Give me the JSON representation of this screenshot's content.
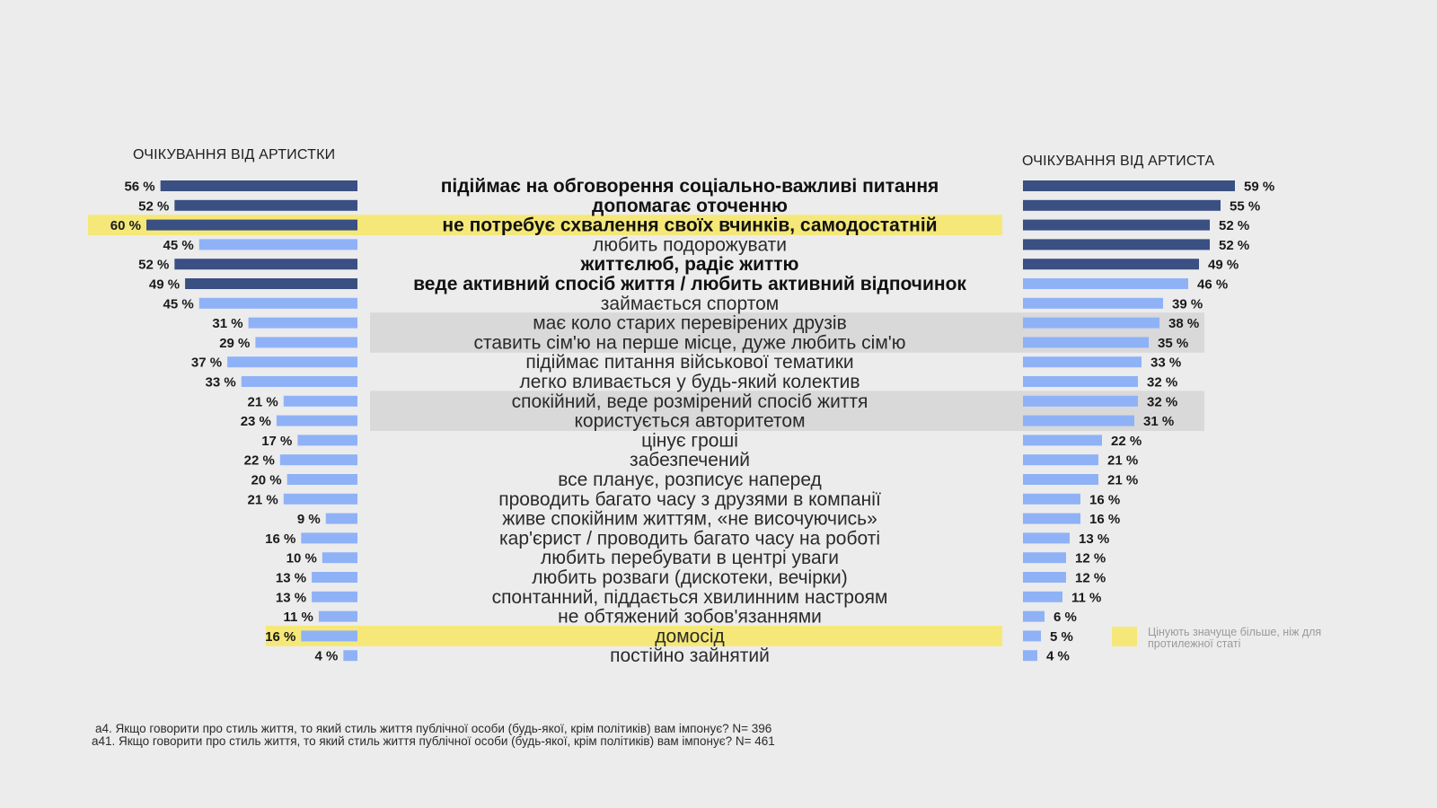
{
  "chart_data": {
    "type": "bar",
    "left_header": "ОЧІКУВАННЯ ВІД АРТИСТКИ",
    "right_header": "ОЧІКУВАННЯ ВІД АРТИСТА",
    "categories": [
      "підіймає на обговорення соціально-важливі питання",
      "допомагає оточенню",
      "не потребує схвалення своїх вчинків, самодостатній",
      "любить подорожувати",
      "життєлюб, радіє життю",
      "веде активний спосіб життя / любить активний відпочинок",
      "займається спортом",
      "має коло старих перевірених друзів",
      "ставить сім'ю на перше місце, дуже любить сім'ю",
      "підіймає питання військової тематики",
      "легко вливається у будь-який колектив",
      "спокійний, веде розмірений спосіб життя",
      "користується авторитетом",
      "цінує гроші",
      "забезпечений",
      "все планує, розписує наперед",
      "проводить багато часу з друзями в компанії",
      "живе спокійним життям, «не височуючись»",
      "кар'єрист / проводить багато часу на роботі",
      "любить перебувати в центрі уваги",
      "любить розваги (дискотеки, вечірки)",
      "спонтанний, піддається хвилинним настроям",
      "не обтяжений зобов'язаннями",
      "домосід",
      "постійно зайнятий"
    ],
    "series": [
      {
        "name": "ОЧІКУВАННЯ ВІД АРТИСТКИ",
        "values": [
          56,
          52,
          60,
          45,
          52,
          49,
          45,
          31,
          29,
          37,
          33,
          21,
          23,
          17,
          22,
          20,
          21,
          9,
          16,
          10,
          13,
          13,
          11,
          16,
          4
        ],
        "labels": [
          "56 %",
          "52 %",
          "60 %",
          "45 %",
          "52 %",
          "49 %",
          "45 %",
          "31 %",
          "29 %",
          "37 %",
          "33 %",
          "21 %",
          "23 %",
          "17 %",
          "22 %",
          "20 %",
          "21 %",
          "9 %",
          "16 %",
          "10 %",
          "13 %",
          "13 %",
          "11 %",
          "16 %",
          "4 %"
        ]
      },
      {
        "name": "ОЧІКУВАННЯ ВІД АРТИСТА",
        "values": [
          59,
          55,
          52,
          52,
          49,
          46,
          39,
          38,
          35,
          33,
          32,
          32,
          31,
          22,
          21,
          21,
          16,
          16,
          13,
          12,
          12,
          11,
          6,
          5,
          4
        ],
        "labels": [
          "59 %",
          "55 %",
          "52 %",
          "52 %",
          "49 %",
          "46 %",
          "39 %",
          "38 %",
          "35 %",
          "33 %",
          "32 %",
          "32 %",
          "31 %",
          "22 %",
          "21 %",
          "21 %",
          "16 %",
          "16 %",
          "13 %",
          "12 %",
          "12 %",
          "11 %",
          "6 %",
          "5 %",
          "4 %"
        ]
      }
    ],
    "dark_left": [
      true,
      true,
      true,
      false,
      true,
      true,
      false,
      false,
      false,
      false,
      false,
      false,
      false,
      false,
      false,
      false,
      false,
      false,
      false,
      false,
      false,
      false,
      false,
      false,
      false
    ],
    "dark_right": [
      true,
      true,
      true,
      true,
      true,
      false,
      false,
      false,
      false,
      false,
      false,
      false,
      false,
      false,
      false,
      false,
      false,
      false,
      false,
      false,
      false,
      false,
      false,
      false,
      false
    ],
    "bold_categories": [
      true,
      true,
      true,
      false,
      true,
      true,
      false,
      false,
      false,
      false,
      false,
      false,
      false,
      false,
      false,
      false,
      false,
      false,
      false,
      false,
      false,
      false,
      false,
      false,
      false
    ],
    "highlight_yellow_full": [
      2
    ],
    "highlight_yellow_left": [
      23
    ],
    "highlight_gray": [
      7,
      8,
      11,
      12
    ],
    "colors": {
      "dark_bar": "#3a4f82",
      "light_bar": "#8fb2f7",
      "yellow": "#f5e878",
      "gray": "#d9d9d9",
      "background": "#ececec"
    },
    "legend": {
      "text_line1": "Цінують значуще більше, ніж для",
      "text_line2": "протилежної статі"
    },
    "footnotes": [
      "а4. Якщо говорити про стиль життя, то який стиль життя публічної особи (будь-якої, крім політиків) вам імпонує? N= 396",
      "а41. Якщо говорити про стиль життя, то який стиль життя публічної особи (будь-якої, крім політиків) вам імпонує? N= 461"
    ]
  }
}
